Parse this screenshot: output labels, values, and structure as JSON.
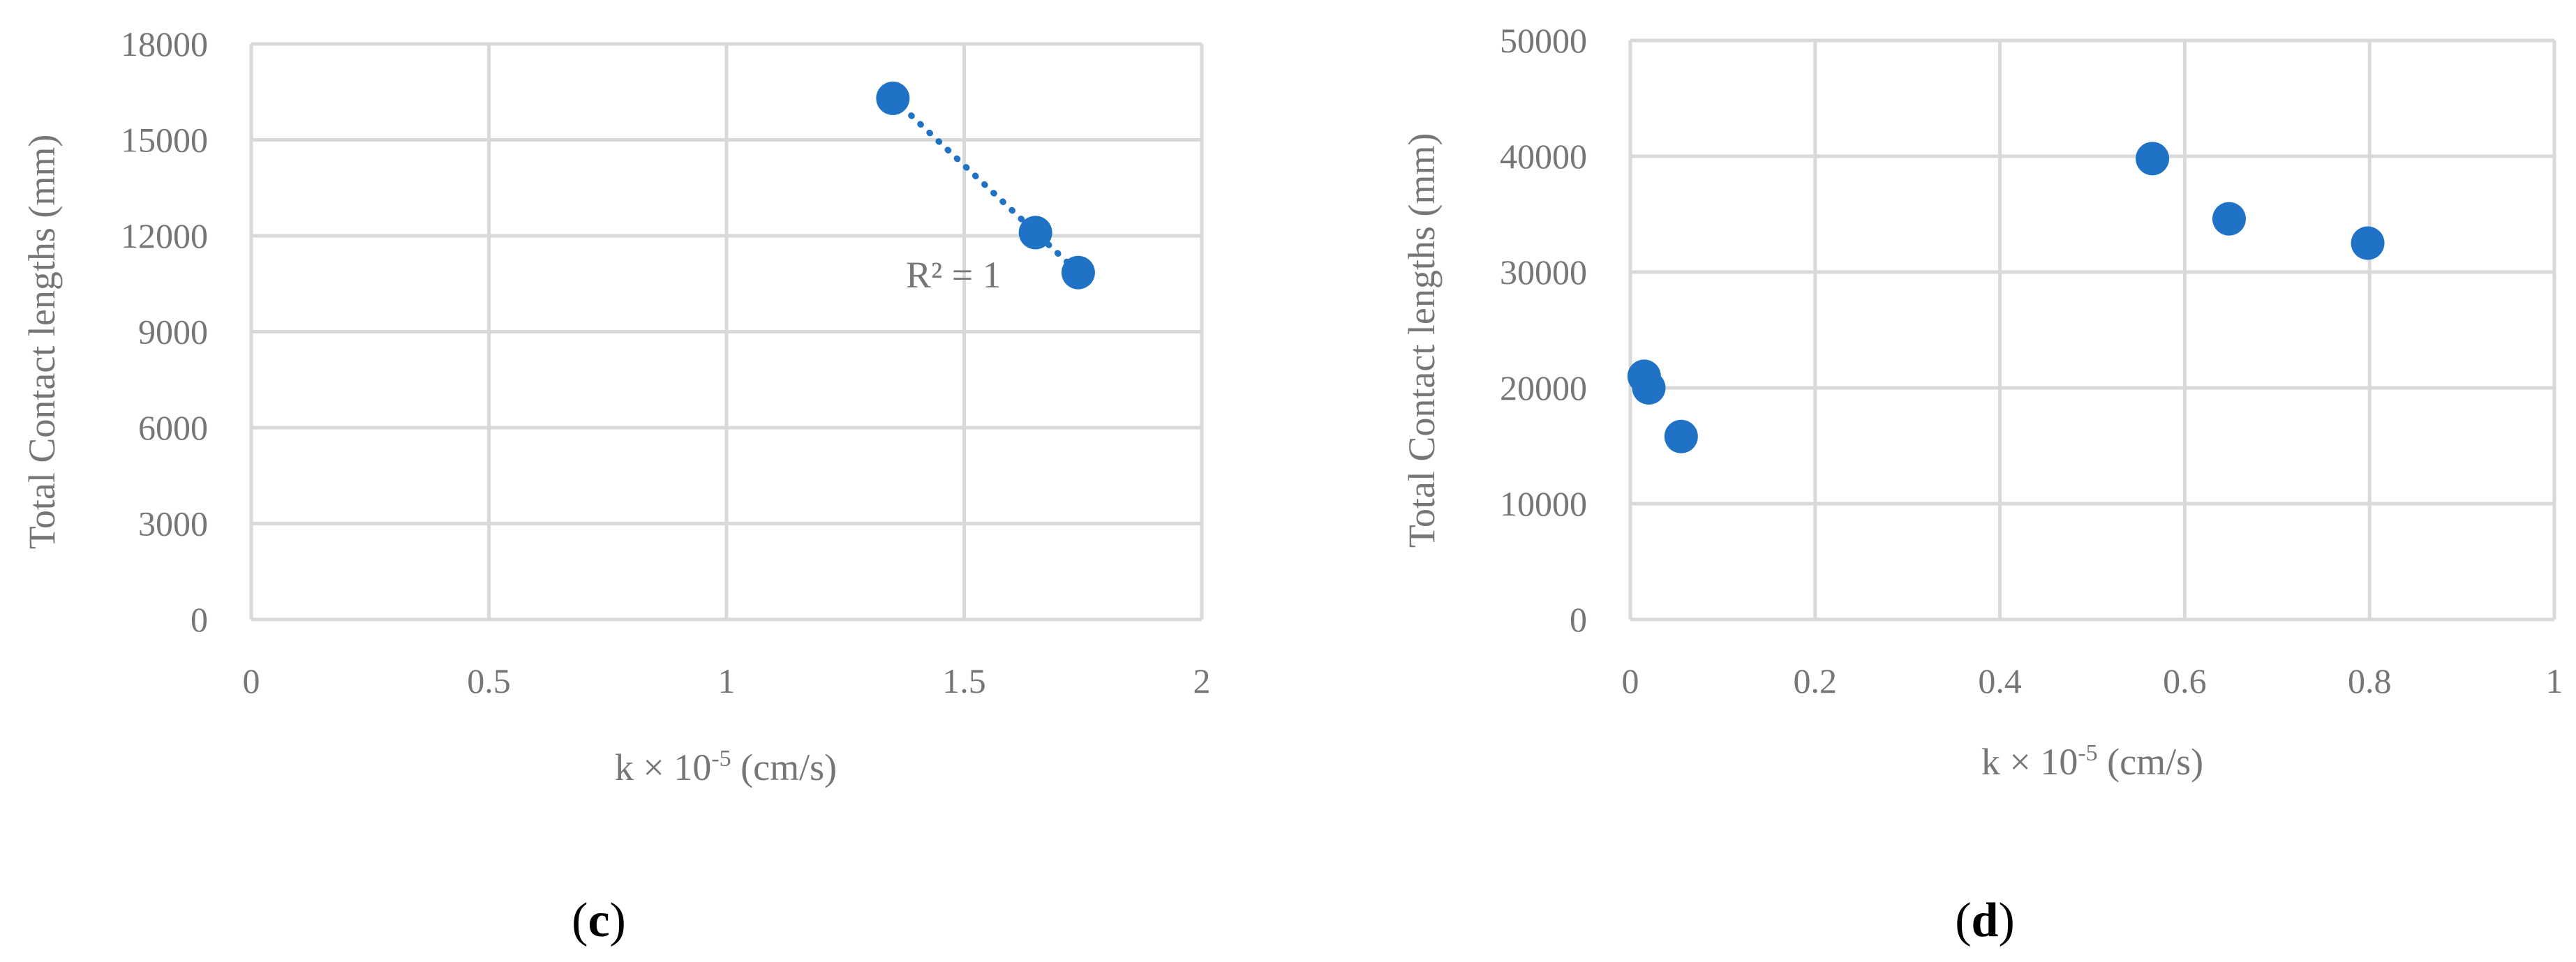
{
  "colors": {
    "marker": "#1f72c6",
    "grid": "#d9d9d9",
    "text": "#767676"
  },
  "chart_data": [
    {
      "type": "scatter",
      "panel_label": "(c)",
      "panel_letter": "c",
      "xlabel": "k × 10",
      "xlabel_sup": "-5",
      "xlabel_unit": " (cm/s)",
      "ylabel": "Total Contact lengths (mm)",
      "xlim": [
        0,
        2
      ],
      "ylim": [
        0,
        18000
      ],
      "xticks": [
        "0",
        "0.5",
        "1",
        "1.5",
        "2"
      ],
      "yticks": [
        "0",
        "3000",
        "6000",
        "9000",
        "12000",
        "15000",
        "18000"
      ],
      "grid": true,
      "points": [
        {
          "x": 1.35,
          "y": 16300
        },
        {
          "x": 1.65,
          "y": 12100
        },
        {
          "x": 1.74,
          "y": 10850
        }
      ],
      "trendline": {
        "type": "linear",
        "style": "dotted",
        "from": [
          1.35,
          16300
        ],
        "to": [
          1.74,
          10850
        ]
      },
      "annotation": "R² = 1"
    },
    {
      "type": "scatter",
      "panel_label": "(d)",
      "panel_letter": "d",
      "xlabel": "k × 10",
      "xlabel_sup": "-5",
      "xlabel_unit": " (cm/s)",
      "ylabel": "Total Contact lengths (mm)",
      "xlim": [
        0,
        1
      ],
      "ylim": [
        0,
        50000
      ],
      "xticks": [
        "0",
        "0.2",
        "0.4",
        "0.6",
        "0.8",
        "1"
      ],
      "yticks": [
        "0",
        "10000",
        "20000",
        "30000",
        "40000",
        "50000"
      ],
      "grid": true,
      "points": [
        {
          "x": 0.015,
          "y": 21000
        },
        {
          "x": 0.02,
          "y": 20000
        },
        {
          "x": 0.055,
          "y": 15800
        },
        {
          "x": 0.565,
          "y": 39800
        },
        {
          "x": 0.648,
          "y": 34600
        },
        {
          "x": 0.798,
          "y": 32500
        }
      ]
    }
  ]
}
